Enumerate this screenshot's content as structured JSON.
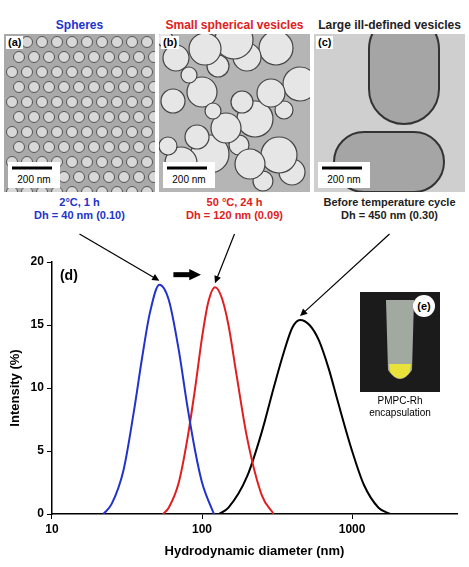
{
  "figure": {
    "panels": [
      {
        "letter": "(a)",
        "title": "Spheres",
        "color": "#2233cc",
        "scale_bar": "200 nm",
        "condition": "2°C, 1 h",
        "dh": "Dh = 40 nm (0.10)"
      },
      {
        "letter": "(b)",
        "title": "Small spherical vesicles",
        "color": "#e02020",
        "scale_bar": "200 nm",
        "condition": "50 °C, 24 h",
        "dh": "Dh = 120 nm (0.09)"
      },
      {
        "letter": "(c)",
        "title": "Large ill-defined vesicles",
        "color": "#222222",
        "scale_bar": "200 nm",
        "condition": "Before temperature cycle",
        "dh": "Dh = 450 nm (0.30)"
      }
    ],
    "inset": {
      "letter": "(e)",
      "caption": "PMPC-Rh encapsulation"
    }
  },
  "chart_data": {
    "type": "line",
    "label": "(d)",
    "x_label": "Hydrodynamic diameter (nm)",
    "y_label": "Intensity (%)",
    "log": "x",
    "grid": false,
    "xlim": [
      10,
      5000
    ],
    "xticks": [
      10,
      100,
      1000
    ],
    "ylim": [
      0,
      20
    ],
    "yticks": [
      0,
      5,
      10,
      15,
      20
    ],
    "series": [
      {
        "color": "#2233cc",
        "x": [
          22,
          25,
          30,
          35,
          40,
          45,
          52,
          60,
          70,
          80,
          90,
          100,
          120
        ],
        "values": [
          0,
          0.8,
          3.5,
          8,
          12.5,
          16,
          18.2,
          17,
          13,
          8.5,
          5,
          2.5,
          0
        ]
      },
      {
        "color": "#e02020",
        "x": [
          55,
          60,
          70,
          80,
          90,
          100,
          110,
          122,
          135,
          150,
          170,
          200,
          250,
          300
        ],
        "values": [
          0,
          0.5,
          2.5,
          6,
          10,
          14,
          16.8,
          18,
          17.2,
          15,
          11,
          6,
          1.5,
          0
        ]
      },
      {
        "color": "#000000",
        "x": [
          130,
          150,
          200,
          250,
          300,
          350,
          400,
          450,
          520,
          600,
          700,
          800,
          1000,
          1200,
          1500,
          1800
        ],
        "values": [
          0,
          0.5,
          3,
          6.5,
          10,
          12.8,
          14.8,
          15.4,
          15,
          13.8,
          11.5,
          9,
          5,
          2.3,
          0.5,
          0
        ]
      }
    ]
  }
}
